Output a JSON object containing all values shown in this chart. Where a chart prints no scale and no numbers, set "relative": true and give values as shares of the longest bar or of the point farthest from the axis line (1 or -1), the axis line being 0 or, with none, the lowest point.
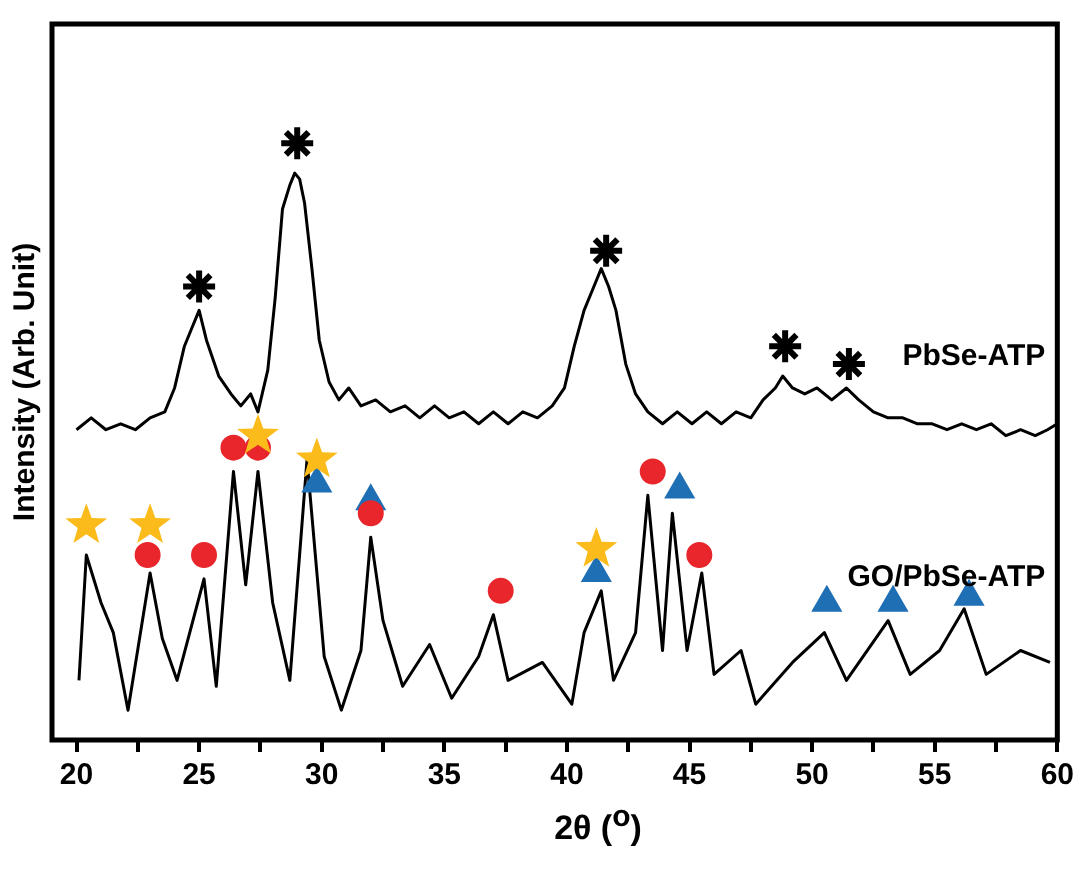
{
  "chart_data": {
    "type": "line",
    "xlabel": "2θ ($^{o}$)",
    "ylabel": "Intensity (Arb. Unit)",
    "relative": true,
    "xlim": [
      19,
      60
    ],
    "xticks": [
      20,
      {
        "value": 22.5,
        "label": null
      },
      25,
      {
        "value": 27.5,
        "label": null
      },
      30,
      {
        "value": 32.5,
        "label": null
      },
      35,
      {
        "value": 37.5,
        "label": null
      },
      40,
      {
        "value": 42.5,
        "label": null
      },
      45,
      {
        "value": 47.5,
        "label": null
      },
      50,
      {
        "value": 52.5,
        "label": null
      },
      55,
      {
        "value": 57.5,
        "label": null
      },
      60
    ],
    "grid": false,
    "legend": false,
    "marker": "none",
    "line_style": "solid",
    "series": [
      {
        "name": "PbSe-ATP",
        "color": "#000000",
        "x": [
          20.0,
          20.6,
          21.2,
          21.8,
          22.4,
          23.0,
          23.6,
          24.0,
          24.4,
          24.7,
          25.0,
          25.3,
          25.8,
          26.3,
          26.7,
          27.1,
          27.4,
          27.8,
          28.1,
          28.4,
          28.7,
          28.9,
          29.1,
          29.3,
          29.6,
          29.9,
          30.3,
          30.7,
          31.1,
          31.6,
          32.2,
          32.8,
          33.4,
          34.0,
          34.6,
          35.2,
          35.8,
          36.4,
          37.0,
          37.6,
          38.2,
          38.8,
          39.4,
          39.9,
          40.3,
          40.7,
          41.1,
          41.4,
          41.7,
          42.0,
          42.4,
          42.8,
          43.3,
          43.9,
          44.5,
          45.1,
          45.7,
          46.3,
          46.9,
          47.5,
          48.0,
          48.5,
          48.8,
          49.2,
          49.7,
          50.2,
          50.8,
          51.4,
          51.9,
          52.5,
          53.1,
          53.7,
          54.3,
          54.9,
          55.5,
          56.1,
          56.7,
          57.3,
          57.9,
          58.5,
          59.1,
          59.6,
          60.0
        ],
        "values": [
          0.52,
          0.54,
          0.52,
          0.53,
          0.52,
          0.54,
          0.55,
          0.59,
          0.66,
          0.69,
          0.72,
          0.67,
          0.61,
          0.58,
          0.56,
          0.58,
          0.55,
          0.62,
          0.74,
          0.89,
          0.93,
          0.95,
          0.94,
          0.9,
          0.79,
          0.67,
          0.6,
          0.57,
          0.59,
          0.56,
          0.57,
          0.55,
          0.56,
          0.54,
          0.56,
          0.54,
          0.55,
          0.53,
          0.55,
          0.53,
          0.55,
          0.54,
          0.56,
          0.59,
          0.66,
          0.72,
          0.76,
          0.79,
          0.76,
          0.72,
          0.63,
          0.58,
          0.55,
          0.53,
          0.55,
          0.53,
          0.55,
          0.53,
          0.55,
          0.54,
          0.57,
          0.59,
          0.61,
          0.59,
          0.58,
          0.59,
          0.57,
          0.59,
          0.57,
          0.55,
          0.54,
          0.54,
          0.53,
          0.53,
          0.52,
          0.53,
          0.52,
          0.53,
          0.51,
          0.52,
          0.51,
          0.52,
          0.53
        ]
      },
      {
        "name": "GO/PbSe-ATP",
        "color": "#000000",
        "x": [
          20.1,
          20.4,
          21.0,
          21.5,
          22.1,
          23.0,
          23.5,
          24.1,
          25.2,
          25.7,
          26.4,
          26.9,
          27.4,
          28.0,
          28.7,
          29.4,
          30.1,
          30.8,
          31.6,
          32.0,
          32.5,
          33.3,
          34.4,
          35.3,
          36.4,
          37.0,
          37.6,
          39.0,
          40.2,
          40.7,
          41.4,
          41.9,
          42.8,
          43.3,
          43.9,
          44.3,
          44.9,
          45.5,
          46.0,
          47.1,
          47.7,
          49.2,
          50.5,
          51.4,
          53.1,
          54.0,
          55.2,
          56.2,
          57.1,
          58.5,
          59.7
        ],
        "values": [
          0.1,
          0.31,
          0.23,
          0.18,
          0.05,
          0.28,
          0.17,
          0.1,
          0.27,
          0.09,
          0.45,
          0.26,
          0.45,
          0.23,
          0.1,
          0.47,
          0.14,
          0.05,
          0.15,
          0.34,
          0.2,
          0.09,
          0.16,
          0.07,
          0.14,
          0.21,
          0.1,
          0.13,
          0.06,
          0.18,
          0.25,
          0.1,
          0.18,
          0.41,
          0.15,
          0.38,
          0.15,
          0.28,
          0.11,
          0.15,
          0.06,
          0.13,
          0.18,
          0.1,
          0.2,
          0.11,
          0.15,
          0.22,
          0.11,
          0.15,
          0.13
        ]
      },
      {
        "type": "scatter",
        "marker": "cross",
        "color": "#000000",
        "x": [
          25.0,
          29.0,
          41.6,
          48.9,
          51.5
        ],
        "values": [
          0.76,
          1.0,
          0.82,
          0.66,
          0.63
        ]
      },
      {
        "type": "scatter",
        "marker": "star",
        "color": "#fbbb1b",
        "x": [
          20.4,
          23.0,
          27.4,
          29.8,
          41.2
        ],
        "values": [
          0.36,
          0.36,
          0.51,
          0.47,
          0.32
        ]
      },
      {
        "type": "scatter",
        "marker": "circle",
        "color": "#e8262b",
        "x": [
          22.9,
          25.2,
          26.4,
          27.4,
          32.0,
          37.3,
          43.5,
          45.4
        ],
        "values": [
          0.31,
          0.31,
          0.49,
          0.49,
          0.38,
          0.25,
          0.45,
          0.31
        ]
      },
      {
        "type": "scatter",
        "marker": "triangle",
        "color": "#1f6fb5",
        "x": [
          29.8,
          32.0,
          41.2,
          44.6,
          50.6,
          53.3,
          56.4
        ],
        "values": [
          0.43,
          0.4,
          0.28,
          0.42,
          0.23,
          0.23,
          0.24
        ]
      }
    ]
  }
}
